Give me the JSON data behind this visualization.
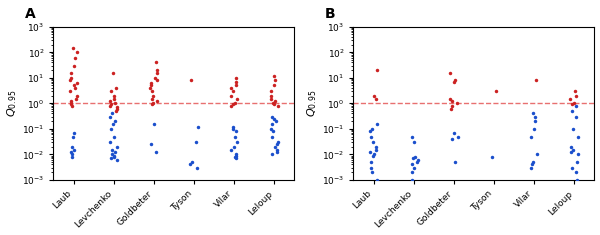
{
  "categories": [
    "Laub",
    "Levchenko",
    "Goldbeter",
    "Tyson",
    "Vilar",
    "Leloup"
  ],
  "panel_A_label": "A",
  "panel_B_label": "B",
  "hline_value": 1.0,
  "hline_color": "#E87070",
  "ylim_min": 0.001,
  "ylim_max": 1000.0,
  "blue_color": "#1B4FCC",
  "red_color": "#CC2222",
  "dot_size": 2.5,
  "jitter_scale": 0.1,
  "panel_A": {
    "Laub": {
      "red": [
        150,
        100,
        60,
        30,
        15,
        10,
        8,
        6,
        5,
        4,
        3,
        2,
        1.5,
        1.2,
        1.0,
        0.9,
        0.8
      ],
      "blue": [
        0.07,
        0.05,
        0.02,
        0.015,
        0.012,
        0.01,
        0.008
      ]
    },
    "Levchenko": {
      "red": [
        15,
        4,
        3,
        2,
        1.5,
        1.2,
        1.0,
        0.9,
        0.8,
        0.7,
        0.6,
        0.5
      ],
      "blue": [
        0.4,
        0.3,
        0.2,
        0.15,
        0.1,
        0.05,
        0.03,
        0.02,
        0.015,
        0.012,
        0.01,
        0.009,
        0.008,
        0.007,
        0.006
      ]
    },
    "Goldbeter": {
      "red": [
        40,
        20,
        15,
        10,
        8,
        6,
        5,
        4,
        3,
        2,
        1.5,
        1.2,
        1.0,
        0.9
      ],
      "blue": [
        0.15,
        0.025,
        0.012
      ]
    },
    "Tyson": {
      "red": [
        8
      ],
      "blue": [
        0.12,
        0.03,
        0.005,
        0.004,
        0.003
      ]
    },
    "Vilar": {
      "red": [
        10,
        7,
        5,
        4,
        3,
        2,
        1.5,
        1.0,
        0.9,
        0.8
      ],
      "blue": [
        0.12,
        0.1,
        0.08,
        0.05,
        0.03,
        0.02,
        0.015,
        0.01,
        0.009,
        0.008,
        0.007
      ]
    },
    "Leloup": {
      "red": [
        12,
        8,
        5,
        3,
        2,
        1.5,
        1.2,
        1.0,
        0.9,
        0.8
      ],
      "blue": [
        0.3,
        0.25,
        0.2,
        0.15,
        0.1,
        0.08,
        0.05,
        0.03,
        0.025,
        0.02,
        0.015,
        0.012,
        0.01
      ]
    }
  },
  "panel_B": {
    "Laub": {
      "red": [
        20,
        2,
        1.5
      ],
      "blue": [
        0.15,
        0.1,
        0.08,
        0.05,
        0.03,
        0.02,
        0.015,
        0.012,
        0.01,
        0.009,
        0.005,
        0.003,
        0.002,
        0.001
      ]
    },
    "Levchenko": {
      "red": [],
      "blue": [
        0.05,
        0.03,
        0.008,
        0.007,
        0.006,
        0.005,
        0.004,
        0.003,
        0.002,
        0.001
      ]
    },
    "Goldbeter": {
      "red": [
        15,
        8,
        7,
        1.5,
        1.2,
        1.0,
        0.8,
        0.6
      ],
      "blue": [
        0.07,
        0.05,
        0.04,
        0.005
      ]
    },
    "Tyson": {
      "red": [
        3
      ],
      "blue": [
        0.008
      ]
    },
    "Vilar": {
      "red": [
        8
      ],
      "blue": [
        0.4,
        0.3,
        0.2,
        0.1,
        0.05,
        0.01,
        0.005,
        0.004,
        0.003
      ]
    },
    "Leloup": {
      "red": [
        3,
        2,
        1.5,
        1.0,
        0.9
      ],
      "blue": [
        0.8,
        0.5,
        0.3,
        0.1,
        0.05,
        0.02,
        0.015,
        0.012,
        0.01,
        0.005,
        0.003,
        0.002,
        0.001
      ]
    }
  }
}
